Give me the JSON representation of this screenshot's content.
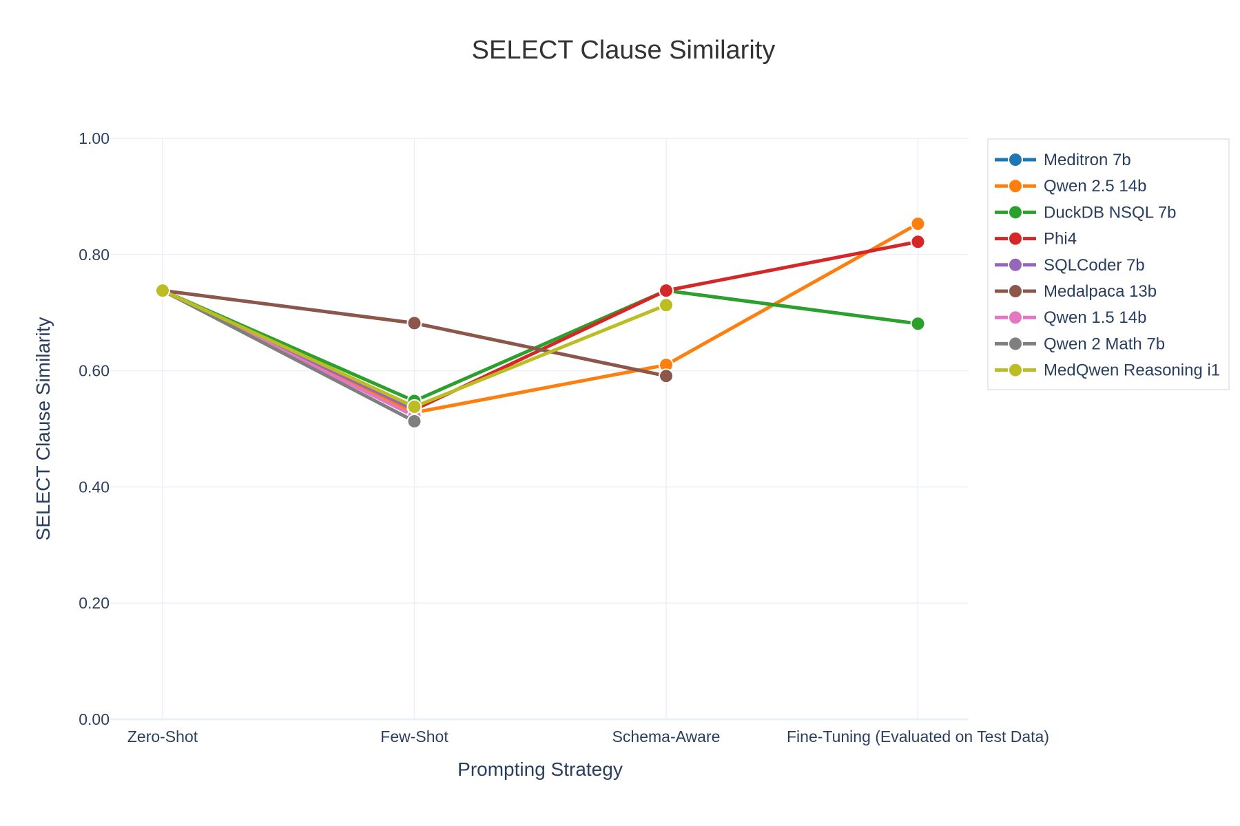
{
  "chart_data": {
    "type": "line",
    "title": "SELECT Clause Similarity",
    "xlabel": "Prompting Strategy",
    "ylabel": "SELECT Clause Similarity",
    "categories": [
      "Zero-Shot",
      "Few-Shot",
      "Schema-Aware",
      "Fine-Tuning (Evaluated on Test Data)"
    ],
    "ylim": [
      0,
      1
    ],
    "yticks": [
      "0.00",
      "0.20",
      "0.40",
      "0.60",
      "0.80",
      "1.00"
    ],
    "grid": true,
    "legend_position": "top-right",
    "series": [
      {
        "name": "Meditron 7b",
        "color": "#1f77b4",
        "values": [
          0.738,
          0.536,
          null,
          null
        ]
      },
      {
        "name": "Qwen 2.5 14b",
        "color": "#ff7f0e",
        "values": [
          0.738,
          0.528,
          0.61,
          0.853
        ]
      },
      {
        "name": "DuckDB NSQL 7b",
        "color": "#2ca02c",
        "values": [
          0.738,
          0.548,
          0.738,
          0.681
        ]
      },
      {
        "name": "Phi4",
        "color": "#d62728",
        "values": [
          0.738,
          0.533,
          0.738,
          0.822
        ]
      },
      {
        "name": "SQLCoder 7b",
        "color": "#9467bd",
        "values": [
          0.738,
          0.533,
          null,
          null
        ]
      },
      {
        "name": "Medalpaca 13b",
        "color": "#8c564b",
        "values": [
          0.738,
          0.682,
          0.591,
          null
        ]
      },
      {
        "name": "Qwen 1.5 14b",
        "color": "#e377c2",
        "values": [
          0.738,
          0.522,
          null,
          null
        ]
      },
      {
        "name": "Qwen 2 Math 7b",
        "color": "#7f7f7f",
        "values": [
          0.738,
          0.513,
          null,
          null
        ]
      },
      {
        "name": "MedQwen Reasoning i1",
        "color": "#bcbd22",
        "values": [
          0.738,
          0.538,
          0.713,
          null
        ]
      }
    ]
  }
}
